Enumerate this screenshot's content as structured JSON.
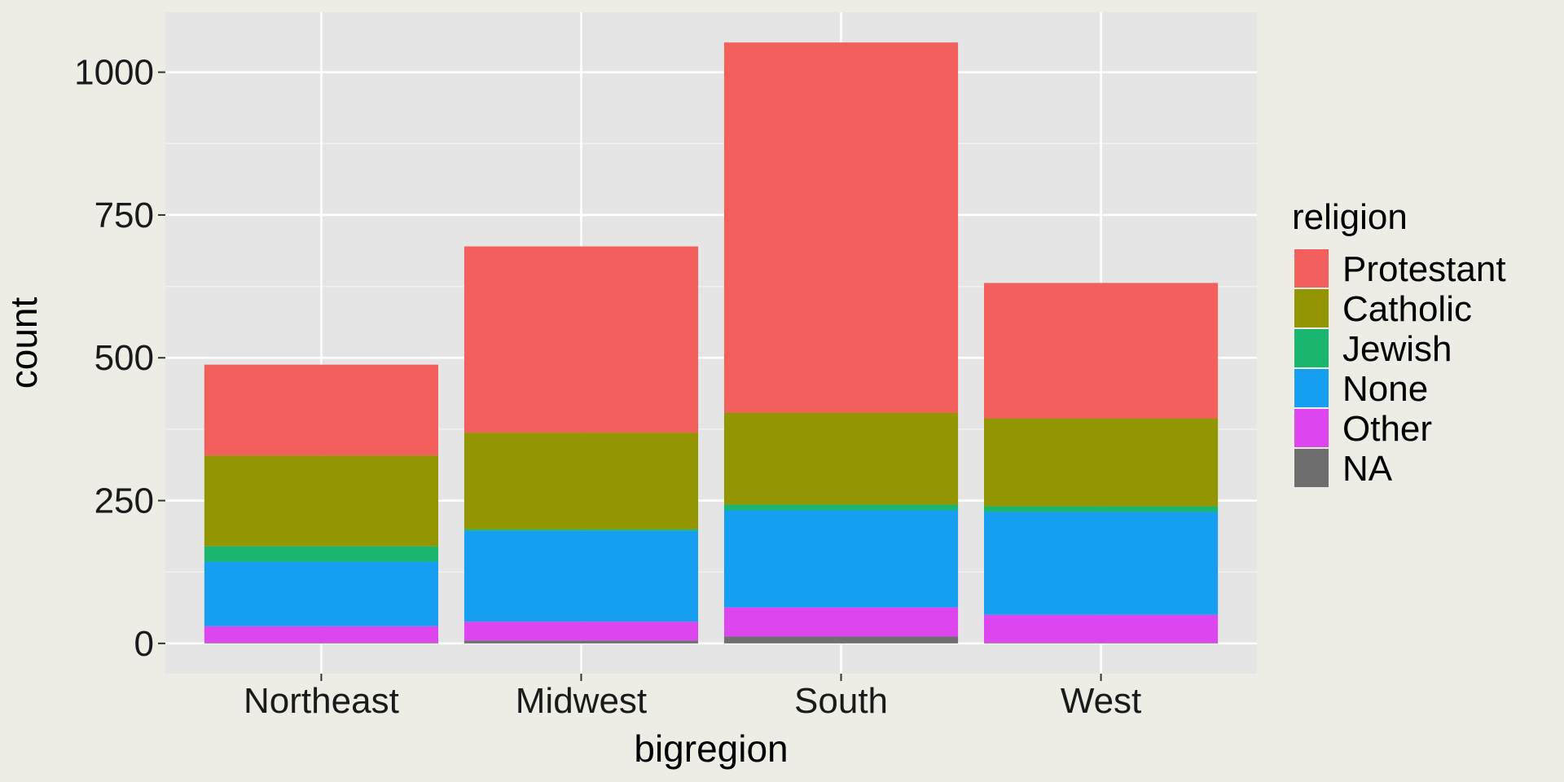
{
  "chart_data": {
    "type": "bar",
    "stacked": true,
    "title": "",
    "xlabel": "bigregion",
    "ylabel": "count",
    "ylim": [
      -53,
      1105
    ],
    "yticks": [
      0,
      250,
      500,
      750,
      1000
    ],
    "ytick_labels": [
      "0",
      "250",
      "500",
      "750",
      "1000"
    ],
    "categories": [
      "Northeast",
      "Midwest",
      "South",
      "West"
    ],
    "legend": {
      "title": "religion",
      "position": "right"
    },
    "series": [
      {
        "name": "Protestant",
        "color": "#F25F5C",
        "values": [
          159,
          326,
          648,
          237
        ]
      },
      {
        "name": "Catholic",
        "color": "#939600",
        "values": [
          159,
          169,
          161,
          154
        ]
      },
      {
        "name": "Jewish",
        "color": "#1AB56E",
        "values": [
          27,
          3,
          10,
          10
        ]
      },
      {
        "name": "None",
        "color": "#169EF1",
        "values": [
          113,
          159,
          170,
          180
        ]
      },
      {
        "name": "Other",
        "color": "#DD46EE",
        "values": [
          29,
          33,
          51,
          49
        ]
      },
      {
        "name": "NA",
        "color": "#6E6E6E",
        "values": [
          1,
          5,
          12,
          1
        ]
      }
    ]
  }
}
